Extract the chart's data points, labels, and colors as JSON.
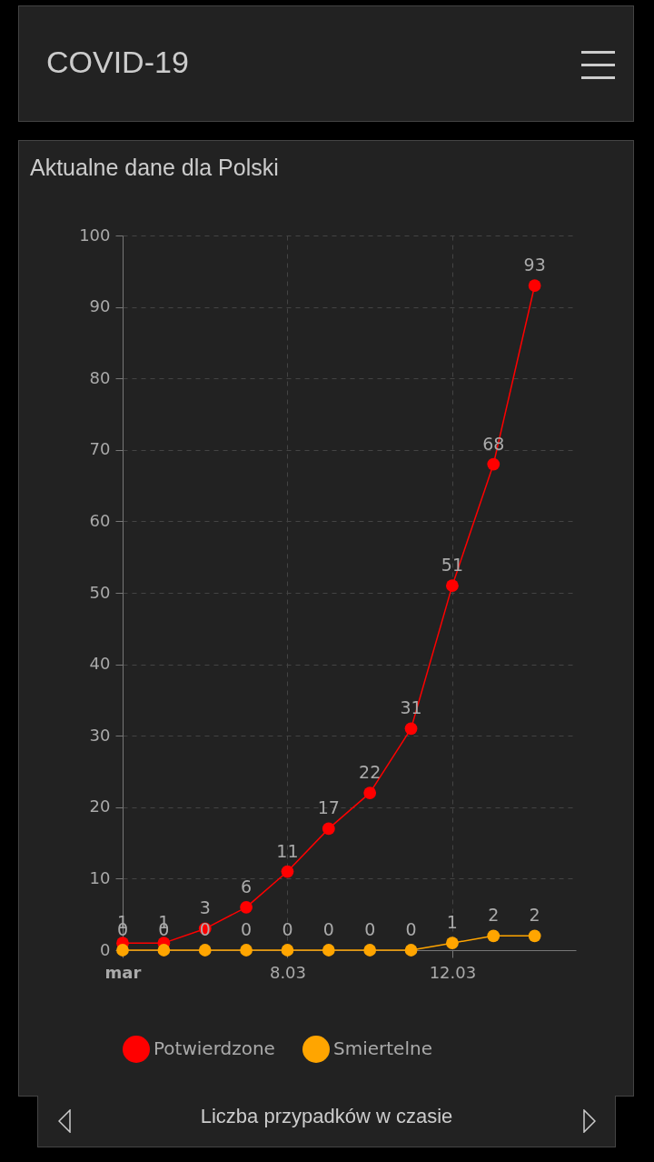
{
  "chart_data": {
    "type": "line",
    "title": "Aktualne dane dla Polski",
    "annotations": [
      "COVID-19",
      "Liczba przypadków w czasie"
    ],
    "x": [
      "--03-04",
      "--03-05",
      "--03-06",
      "--03-07",
      "--03-08",
      "--03-09",
      "--03-10",
      "--03-11",
      "--03-12",
      "--03-13",
      "--03-14"
    ],
    "series": [
      {
        "name": "Potwierdzone",
        "color": "#ff0000",
        "values": [
          1,
          1,
          3,
          6,
          11,
          17,
          22,
          31,
          51,
          68,
          93
        ]
      },
      {
        "name": "Smiertelne",
        "color": "#ffa500",
        "values": [
          0,
          0,
          0,
          0,
          0,
          0,
          0,
          0,
          1,
          2,
          2
        ]
      }
    ],
    "xlim": [
      "--03-04",
      "--03-15"
    ],
    "xticks": [
      {
        "value": "--03-04",
        "label": "mar"
      },
      {
        "value": "--03-08",
        "label": "8.03"
      },
      {
        "value": "--03-12",
        "label": "12.03"
      }
    ],
    "ylim": [
      0,
      100
    ],
    "yticks": [
      0,
      10,
      20,
      30,
      40,
      50,
      60,
      70,
      80,
      90,
      100
    ],
    "grid": true,
    "legend": "bottom",
    "marker": "circle",
    "line_style": "solid",
    "data_labels": true
  }
}
